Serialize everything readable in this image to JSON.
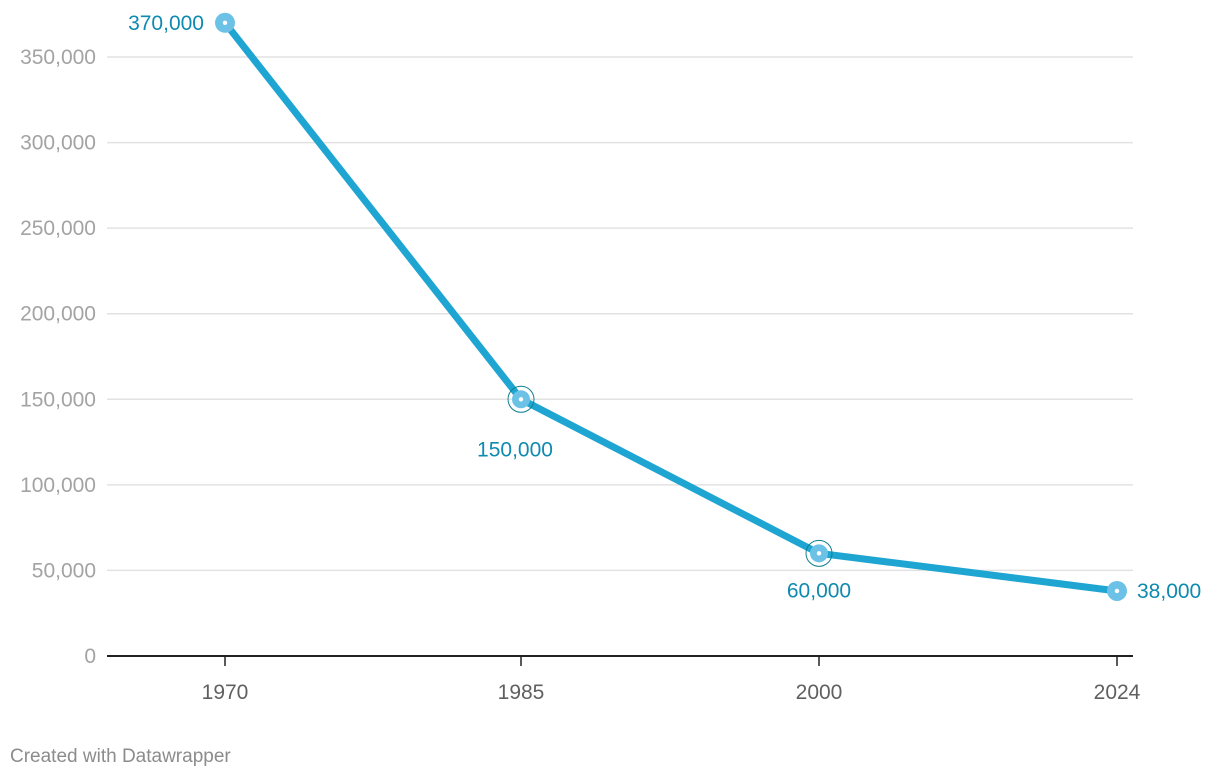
{
  "chart_data": {
    "type": "line",
    "x": [
      "1970",
      "1985",
      "2000",
      "2024"
    ],
    "series": [
      {
        "values": [
          370000,
          150000,
          60000,
          38000
        ],
        "labels": [
          "370,000",
          "150,000",
          "60,000",
          "38,000"
        ],
        "color": "#1fa5d1"
      }
    ],
    "y_ticks": [
      0,
      50000,
      100000,
      150000,
      200000,
      250000,
      300000,
      350000
    ],
    "y_tick_labels": [
      "0",
      "50,000",
      "100,000",
      "150,000",
      "200,000",
      "250,000",
      "300,000",
      "350,000"
    ],
    "ylim": [
      0,
      370000
    ],
    "grid": true,
    "label_color": "#0f8ab0"
  },
  "footer": {
    "credit": "Created with Datawrapper"
  }
}
